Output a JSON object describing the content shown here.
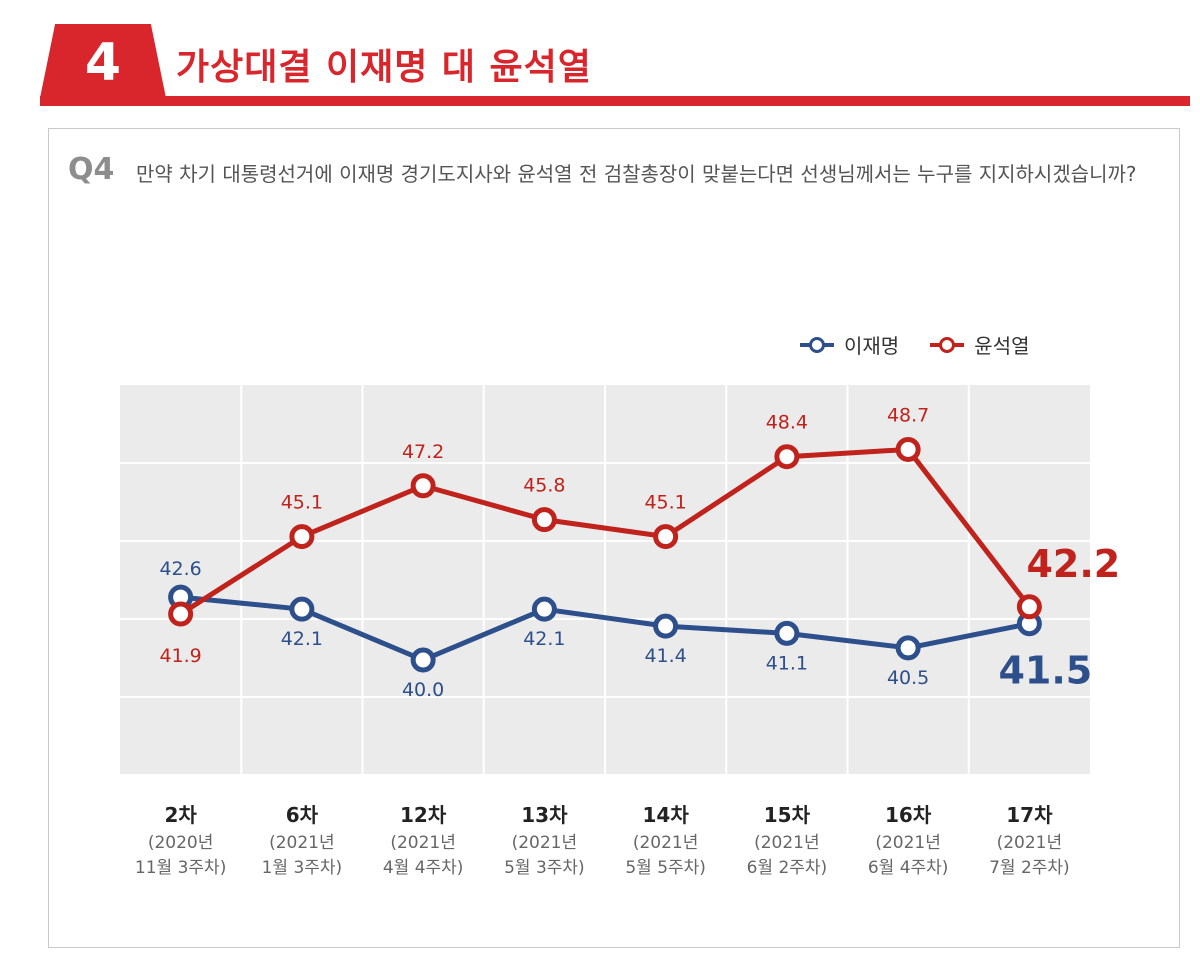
{
  "header": {
    "section_number": "4",
    "title": "가상대결 이재명 대 윤석열"
  },
  "question": {
    "label": "Q4",
    "text": "만약 차기 대통령선거에 이재명 경기도지사와 윤석열 전 검찰총장이 맞붙는다면 선생님께서는 누구를 지지하시겠습니까?"
  },
  "legend": {
    "items": [
      {
        "label": "이재명",
        "color": "#2d4f8b"
      },
      {
        "label": "윤석열",
        "color": "#c0221c"
      }
    ]
  },
  "chart_data": {
    "type": "line",
    "title": "",
    "xlabel": "",
    "ylabel": "",
    "grid": true,
    "legend_position": "top-right",
    "categories": [
      "2차",
      "6차",
      "12차",
      "13차",
      "14차",
      "15차",
      "16차",
      "17차"
    ],
    "category_sublabels": [
      [
        "(2020년",
        "11월 3주차)"
      ],
      [
        "(2021년",
        "1월 3주차)"
      ],
      [
        "(2021년",
        "4월 4주차)"
      ],
      [
        "(2021년",
        "5월 3주차)"
      ],
      [
        "(2021년",
        "5월 5주차)"
      ],
      [
        "(2021년",
        "6월 2주차)"
      ],
      [
        "(2021년",
        "6월 4주차)"
      ],
      [
        "(2021년",
        "7월 2주차)"
      ]
    ],
    "series": [
      {
        "name": "이재명",
        "color": "#2d4f8b",
        "values": [
          42.6,
          42.1,
          40.0,
          42.1,
          41.4,
          41.1,
          40.5,
          41.5
        ]
      },
      {
        "name": "윤석열",
        "color": "#c0221c",
        "values": [
          41.9,
          45.1,
          47.2,
          45.8,
          45.1,
          48.4,
          48.7,
          42.2
        ]
      }
    ]
  }
}
